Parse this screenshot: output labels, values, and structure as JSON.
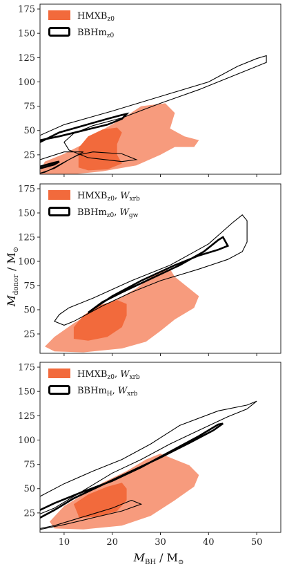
{
  "colors": {
    "outer_fill": "#f79b7d",
    "inner_fill": "#f26a3c",
    "contour": "#000000",
    "axes": "#222222"
  },
  "xlabel": {
    "main": "M",
    "sub": "BH",
    "rest": " / M",
    "odot": "⊙"
  },
  "ylabel": {
    "main": "M",
    "sub": "donor",
    "rest": " / M",
    "odot": "⊙"
  },
  "chart_data": [
    {
      "type": "contour",
      "xlim": [
        5,
        55
      ],
      "ylim": [
        5,
        180
      ],
      "xticks": [
        "10",
        "20",
        "30",
        "40",
        "50"
      ],
      "yticks": [
        "25",
        "50",
        "75",
        "100",
        "125",
        "150",
        "175"
      ],
      "show_xticklabels": false,
      "legend_position": "top-left",
      "legend": [
        {
          "kind": "fill",
          "text": "HMXB",
          "sub": "z0",
          "extra": "",
          "extra_sub": ""
        },
        {
          "kind": "line",
          "text": "BBHm",
          "sub": "z0",
          "extra": "",
          "extra_sub": ""
        }
      ],
      "regions": {
        "outer_fill": [
          [
            5,
            8
          ],
          [
            6,
            18
          ],
          [
            10,
            26
          ],
          [
            14,
            36
          ],
          [
            17,
            48
          ],
          [
            22,
            62
          ],
          [
            26,
            75
          ],
          [
            31,
            78
          ],
          [
            33,
            68
          ],
          [
            32,
            52
          ],
          [
            35,
            44
          ],
          [
            38,
            40
          ],
          [
            37,
            33
          ],
          [
            33,
            33
          ],
          [
            30,
            25
          ],
          [
            25,
            14
          ],
          [
            18,
            8
          ],
          [
            12,
            5
          ],
          [
            5,
            5
          ]
        ],
        "inner_fill": [
          [
            13,
            15
          ],
          [
            13,
            32
          ],
          [
            15,
            44
          ],
          [
            18,
            51
          ],
          [
            21,
            53
          ],
          [
            22,
            48
          ],
          [
            21,
            36
          ],
          [
            21,
            25
          ],
          [
            22,
            16
          ],
          [
            19,
            10
          ],
          [
            15,
            9
          ],
          [
            13,
            12
          ]
        ],
        "outer_line": [
          [
            5,
            6
          ],
          [
            8,
            11
          ],
          [
            11,
            20
          ],
          [
            14,
            28
          ],
          [
            10,
            28
          ],
          [
            5,
            20
          ],
          [
            5,
            45
          ],
          [
            10,
            56
          ],
          [
            20,
            70
          ],
          [
            30,
            85
          ],
          [
            40,
            100
          ],
          [
            46,
            116
          ],
          [
            50,
            124
          ],
          [
            52,
            127
          ],
          [
            52,
            120
          ],
          [
            47,
            110
          ],
          [
            38,
            92
          ],
          [
            30,
            78
          ],
          [
            22,
            63
          ],
          [
            16,
            55
          ],
          [
            12,
            47
          ],
          [
            10,
            38
          ],
          [
            11,
            30
          ],
          [
            15,
            22
          ],
          [
            22,
            18
          ],
          [
            25,
            20
          ],
          [
            22,
            26
          ],
          [
            16,
            28
          ],
          [
            13,
            25
          ],
          [
            11,
            20
          ],
          [
            8,
            12
          ],
          [
            6,
            7
          ],
          [
            5,
            6
          ]
        ],
        "inner_line": [
          [
            5,
            38
          ],
          [
            9,
            48
          ],
          [
            14,
            55
          ],
          [
            19,
            62
          ],
          [
            22,
            66
          ],
          [
            23,
            67
          ],
          [
            22,
            62
          ],
          [
            19,
            56
          ],
          [
            14,
            50
          ],
          [
            9,
            44
          ],
          [
            5,
            40
          ]
        ],
        "inner_line2": [
          [
            5,
            11
          ],
          [
            8,
            15
          ],
          [
            9,
            18
          ],
          [
            8,
            17
          ],
          [
            5,
            13
          ]
        ]
      }
    },
    {
      "type": "contour",
      "xlim": [
        5,
        55
      ],
      "ylim": [
        5,
        180
      ],
      "xticks": [
        "10",
        "20",
        "30",
        "40",
        "50"
      ],
      "yticks": [
        "25",
        "50",
        "75",
        "100",
        "125",
        "150",
        "175"
      ],
      "show_xticklabels": false,
      "legend_position": "top-left",
      "legend": [
        {
          "kind": "fill",
          "text": "HMXB",
          "sub": "z0",
          "extra": "W",
          "extra_sub": "xrb"
        },
        {
          "kind": "line",
          "text": "BBHm",
          "sub": "z0",
          "extra": "W",
          "extra_sub": "gw"
        }
      ],
      "regions": {
        "outer_fill": [
          [
            6,
            12
          ],
          [
            8,
            22
          ],
          [
            12,
            36
          ],
          [
            16,
            48
          ],
          [
            20,
            58
          ],
          [
            25,
            72
          ],
          [
            29,
            88
          ],
          [
            32,
            92
          ],
          [
            33,
            84
          ],
          [
            36,
            72
          ],
          [
            38,
            64
          ],
          [
            37,
            52
          ],
          [
            33,
            40
          ],
          [
            30,
            28
          ],
          [
            27,
            17
          ],
          [
            22,
            10
          ],
          [
            14,
            6
          ],
          [
            8,
            7
          ],
          [
            6,
            12
          ]
        ],
        "inner_fill": [
          [
            12,
            24
          ],
          [
            12,
            32
          ],
          [
            14,
            44
          ],
          [
            17,
            54
          ],
          [
            21,
            60
          ],
          [
            23,
            56
          ],
          [
            23,
            44
          ],
          [
            22,
            32
          ],
          [
            19,
            22
          ],
          [
            15,
            18
          ],
          [
            12,
            20
          ]
        ],
        "outer_line": [
          [
            9,
            45
          ],
          [
            11,
            52
          ],
          [
            16,
            62
          ],
          [
            24,
            80
          ],
          [
            32,
            96
          ],
          [
            40,
            118
          ],
          [
            45,
            140
          ],
          [
            47,
            148
          ],
          [
            48,
            142
          ],
          [
            48,
            128
          ],
          [
            48,
            120
          ],
          [
            47,
            110
          ],
          [
            44,
            102
          ],
          [
            38,
            92
          ],
          [
            30,
            80
          ],
          [
            24,
            68
          ],
          [
            18,
            54
          ],
          [
            12,
            38
          ],
          [
            10,
            34
          ],
          [
            8,
            38
          ],
          [
            9,
            45
          ]
        ],
        "inner_line": [
          [
            15,
            47
          ],
          [
            18,
            58
          ],
          [
            22,
            68
          ],
          [
            28,
            82
          ],
          [
            34,
            96
          ],
          [
            39,
            110
          ],
          [
            42,
            122
          ],
          [
            43,
            125
          ],
          [
            44,
            116
          ],
          [
            42,
            112
          ],
          [
            38,
            106
          ],
          [
            33,
            96
          ],
          [
            26,
            80
          ],
          [
            20,
            64
          ],
          [
            17,
            54
          ],
          [
            15,
            47
          ]
        ],
        "inner_line2": []
      }
    },
    {
      "type": "contour",
      "xlim": [
        5,
        55
      ],
      "ylim": [
        5,
        180
      ],
      "xticks": [
        "10",
        "20",
        "30",
        "40",
        "50"
      ],
      "yticks": [
        "25",
        "50",
        "75",
        "100",
        "125",
        "150",
        "175"
      ],
      "show_xticklabels": true,
      "legend_position": "top-left",
      "legend": [
        {
          "kind": "fill",
          "text": "HMXB",
          "sub": "z0",
          "extra": "W",
          "extra_sub": "xrb"
        },
        {
          "kind": "line",
          "text": "BBHm",
          "sub": "H",
          "extra": "W",
          "extra_sub": "xrb"
        }
      ],
      "regions": {
        "outer_fill": [
          [
            7,
            16
          ],
          [
            10,
            32
          ],
          [
            14,
            44
          ],
          [
            18,
            56
          ],
          [
            23,
            68
          ],
          [
            27,
            80
          ],
          [
            30,
            86
          ],
          [
            33,
            80
          ],
          [
            36,
            74
          ],
          [
            38,
            64
          ],
          [
            37,
            52
          ],
          [
            33,
            38
          ],
          [
            28,
            22
          ],
          [
            22,
            12
          ],
          [
            14,
            8
          ],
          [
            8,
            9
          ],
          [
            7,
            16
          ]
        ],
        "inner_fill": [
          [
            13,
            22
          ],
          [
            12,
            34
          ],
          [
            15,
            44
          ],
          [
            19,
            52
          ],
          [
            22,
            56
          ],
          [
            23,
            50
          ],
          [
            23,
            38
          ],
          [
            21,
            27
          ],
          [
            17,
            21
          ],
          [
            13,
            20
          ]
        ],
        "outer_line": [
          [
            5,
            42
          ],
          [
            10,
            55
          ],
          [
            16,
            68
          ],
          [
            22,
            80
          ],
          [
            28,
            96
          ],
          [
            34,
            115
          ],
          [
            42,
            130
          ],
          [
            48,
            136
          ],
          [
            50,
            140
          ],
          [
            48,
            132
          ],
          [
            44,
            124
          ],
          [
            38,
            110
          ],
          [
            32,
            96
          ],
          [
            26,
            80
          ],
          [
            20,
            66
          ],
          [
            14,
            48
          ],
          [
            8,
            30
          ],
          [
            5,
            24
          ],
          [
            5,
            42
          ]
        ],
        "inner_line": [
          [
            5,
            28
          ],
          [
            8,
            35
          ],
          [
            14,
            47
          ],
          [
            20,
            58
          ],
          [
            26,
            72
          ],
          [
            32,
            88
          ],
          [
            38,
            104
          ],
          [
            42,
            116
          ],
          [
            43,
            117
          ],
          [
            41,
            110
          ],
          [
            36,
            97
          ],
          [
            30,
            82
          ],
          [
            24,
            68
          ],
          [
            18,
            54
          ],
          [
            12,
            40
          ],
          [
            8,
            28
          ],
          [
            5,
            20
          ]
        ],
        "inner_line2": [
          [
            5,
            9
          ],
          [
            8,
            12
          ],
          [
            12,
            18
          ],
          [
            16,
            24
          ],
          [
            20,
            30
          ],
          [
            24,
            38
          ],
          [
            26,
            34
          ],
          [
            22,
            27
          ],
          [
            16,
            20
          ],
          [
            10,
            13
          ],
          [
            5,
            8
          ]
        ]
      }
    }
  ]
}
